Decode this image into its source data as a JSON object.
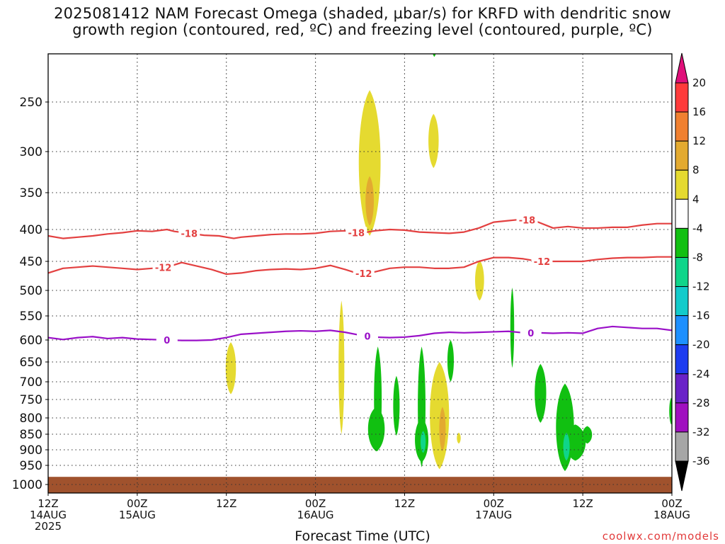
{
  "title": {
    "line1": "2025081412 NAM Forecast Omega (shaded, µbar/s) for KRFD with dendritic snow",
    "line2": "growth region (contoured, red, ºC) and freezing level (contoured, purple, ºC)"
  },
  "credit": "coolwx.com/models",
  "chart_data": {
    "type": "time-height cross section",
    "xlabel": "Forecast Time (UTC)",
    "ylabel": "",
    "x_range_hours": [
      0,
      84
    ],
    "y_range_hPa": [
      200,
      1000
    ],
    "y_ticks": [
      250,
      300,
      350,
      400,
      450,
      500,
      550,
      600,
      650,
      700,
      750,
      800,
      850,
      900,
      950,
      1000
    ],
    "x_ticks": [
      {
        "hour": 0,
        "lines": [
          "12Z",
          "14AUG",
          "2025"
        ]
      },
      {
        "hour": 12,
        "lines": [
          "00Z",
          "15AUG"
        ]
      },
      {
        "hour": 24,
        "lines": [
          "12Z"
        ]
      },
      {
        "hour": 36,
        "lines": [
          "00Z",
          "16AUG"
        ]
      },
      {
        "hour": 48,
        "lines": [
          "12Z"
        ]
      },
      {
        "hour": 60,
        "lines": [
          "00Z",
          "17AUG"
        ]
      },
      {
        "hour": 72,
        "lines": [
          "12Z"
        ]
      },
      {
        "hour": 84,
        "lines": [
          "00Z",
          "18AUG"
        ]
      }
    ],
    "grid": true,
    "colorbar": {
      "labels": [
        "20",
        "16",
        "12",
        "8",
        "4",
        "-4",
        "-8",
        "-12",
        "-16",
        "-20",
        "-24",
        "-28",
        "-32",
        "-36"
      ],
      "colors": [
        "#ff3b3b",
        "#f08030",
        "#e3aa30",
        "#e5da30",
        "#ffffff",
        "#11c011",
        "#0fd58a",
        "#12cbcb",
        "#1e90ff",
        "#1e3cf0",
        "#6a22c8",
        "#a010c0",
        "#a6a6a6"
      ],
      "top_triangle": "#e0107a",
      "bottom_triangle": "#000000"
    },
    "contours": [
      {
        "label": "-18",
        "color": "#e34040",
        "points": [
          [
            0,
            410
          ],
          [
            2,
            414
          ],
          [
            4,
            412
          ],
          [
            6,
            410
          ],
          [
            8,
            407
          ],
          [
            10,
            405
          ],
          [
            12,
            402
          ],
          [
            14,
            403
          ],
          [
            16,
            400
          ],
          [
            17,
            403
          ],
          [
            19,
            406
          ],
          [
            21,
            409
          ],
          [
            23,
            410
          ],
          [
            25,
            414
          ],
          [
            26,
            412
          ],
          [
            28,
            410
          ],
          [
            30,
            408
          ],
          [
            32,
            407
          ],
          [
            34,
            407
          ],
          [
            36,
            406
          ],
          [
            38,
            403
          ],
          [
            40,
            402
          ],
          [
            42,
            406
          ],
          [
            44,
            402
          ],
          [
            46,
            400
          ],
          [
            48,
            401
          ],
          [
            50,
            404
          ],
          [
            52,
            405
          ],
          [
            54,
            406
          ],
          [
            56,
            404
          ],
          [
            58,
            398
          ],
          [
            60,
            390
          ],
          [
            62,
            388
          ],
          [
            64,
            386
          ],
          [
            66,
            390
          ],
          [
            68,
            398
          ],
          [
            70,
            396
          ],
          [
            72,
            398
          ],
          [
            74,
            398
          ],
          [
            76,
            397
          ],
          [
            78,
            397
          ],
          [
            80,
            394
          ],
          [
            82,
            392
          ],
          [
            84,
            392
          ]
        ],
        "labels_at": [
          19,
          41.5,
          64.5
        ]
      },
      {
        "label": "-12",
        "color": "#e34040",
        "points": [
          [
            0,
            470
          ],
          [
            2,
            462
          ],
          [
            4,
            460
          ],
          [
            6,
            458
          ],
          [
            8,
            460
          ],
          [
            10,
            462
          ],
          [
            12,
            464
          ],
          [
            14,
            462
          ],
          [
            16,
            460
          ],
          [
            18,
            452
          ],
          [
            20,
            458
          ],
          [
            22,
            464
          ],
          [
            24,
            472
          ],
          [
            26,
            470
          ],
          [
            28,
            466
          ],
          [
            30,
            464
          ],
          [
            32,
            463
          ],
          [
            34,
            464
          ],
          [
            36,
            462
          ],
          [
            38,
            457
          ],
          [
            40,
            464
          ],
          [
            42,
            472
          ],
          [
            44,
            468
          ],
          [
            46,
            462
          ],
          [
            48,
            460
          ],
          [
            50,
            460
          ],
          [
            52,
            462
          ],
          [
            54,
            462
          ],
          [
            56,
            460
          ],
          [
            58,
            450
          ],
          [
            60,
            444
          ],
          [
            62,
            444
          ],
          [
            64,
            446
          ],
          [
            66,
            450
          ],
          [
            68,
            450
          ],
          [
            70,
            450
          ],
          [
            72,
            450
          ],
          [
            74,
            447
          ],
          [
            76,
            445
          ],
          [
            78,
            444
          ],
          [
            80,
            444
          ],
          [
            82,
            443
          ],
          [
            84,
            443
          ]
        ],
        "labels_at": [
          15.5,
          42.5,
          66.5
        ]
      },
      {
        "label": "0",
        "color": "#9a10c8",
        "points": [
          [
            0,
            595
          ],
          [
            2,
            599
          ],
          [
            4,
            595
          ],
          [
            6,
            593
          ],
          [
            8,
            597
          ],
          [
            10,
            595
          ],
          [
            12,
            598
          ],
          [
            14,
            599
          ],
          [
            16,
            600
          ],
          [
            18,
            601
          ],
          [
            20,
            601
          ],
          [
            22,
            600
          ],
          [
            24,
            595
          ],
          [
            26,
            588
          ],
          [
            28,
            586
          ],
          [
            30,
            584
          ],
          [
            32,
            582
          ],
          [
            34,
            581
          ],
          [
            36,
            582
          ],
          [
            38,
            580
          ],
          [
            40,
            584
          ],
          [
            42,
            590
          ],
          [
            44,
            594
          ],
          [
            46,
            595
          ],
          [
            48,
            594
          ],
          [
            50,
            591
          ],
          [
            52,
            586
          ],
          [
            54,
            584
          ],
          [
            56,
            585
          ],
          [
            58,
            584
          ],
          [
            60,
            583
          ],
          [
            62,
            582
          ],
          [
            64,
            585
          ],
          [
            66,
            585
          ],
          [
            68,
            586
          ],
          [
            70,
            585
          ],
          [
            72,
            586
          ],
          [
            74,
            576
          ],
          [
            76,
            572
          ],
          [
            78,
            574
          ],
          [
            80,
            576
          ],
          [
            82,
            576
          ],
          [
            84,
            580
          ]
        ],
        "labels_at": [
          16,
          43,
          65
        ]
      }
    ],
    "shaded_regions": [
      {
        "value": 4,
        "color": "#e5da30",
        "hour": 43.3,
        "top": 240,
        "bottom": 410,
        "width": 3.4
      },
      {
        "value": 8,
        "color": "#e3aa30",
        "hour": 43.3,
        "top": 330,
        "bottom": 395,
        "width": 1.3
      },
      {
        "value": 4,
        "color": "#e5da30",
        "hour": 51.9,
        "top": 262,
        "bottom": 320,
        "width": 1.6
      },
      {
        "value": -4,
        "color": "#11c011",
        "hour": 52.0,
        "top": 203,
        "bottom": 212,
        "width": 0.5
      },
      {
        "value": 4,
        "color": "#e5da30",
        "hour": 24.6,
        "top": 605,
        "bottom": 735,
        "width": 1.6
      },
      {
        "value": 4,
        "color": "#e5da30",
        "hour": 39.5,
        "top": 520,
        "bottom": 850,
        "width": 0.9
      },
      {
        "value": 4,
        "color": "#e5da30",
        "hour": 58.1,
        "top": 448,
        "bottom": 520,
        "width": 1.4
      },
      {
        "value": 4,
        "color": "#e5da30",
        "hour": 52.7,
        "top": 650,
        "bottom": 960,
        "width": 3.0
      },
      {
        "value": 8,
        "color": "#e3aa30",
        "hour": 53.1,
        "top": 770,
        "bottom": 905,
        "width": 1.0
      },
      {
        "value": 4,
        "color": "#e5da30",
        "hour": 55.3,
        "top": 845,
        "bottom": 880,
        "width": 0.6
      },
      {
        "value": -4,
        "color": "#11c011",
        "hour": 44.4,
        "top": 615,
        "bottom": 905,
        "width": 1.2
      },
      {
        "value": -4,
        "color": "#11c011",
        "hour": 44.2,
        "top": 770,
        "bottom": 905,
        "width": 2.6
      },
      {
        "value": -4,
        "color": "#11c011",
        "hour": 46.9,
        "top": 685,
        "bottom": 855,
        "width": 1.0
      },
      {
        "value": -4,
        "color": "#11c011",
        "hour": 50.3,
        "top": 615,
        "bottom": 955,
        "width": 1.2
      },
      {
        "value": -4,
        "color": "#11c011",
        "hour": 50.3,
        "top": 800,
        "bottom": 940,
        "width": 2.1
      },
      {
        "value": -8,
        "color": "#0fd58a",
        "hour": 50.5,
        "top": 840,
        "bottom": 910,
        "width": 0.8
      },
      {
        "value": -4,
        "color": "#11c011",
        "hour": 54.2,
        "top": 600,
        "bottom": 700,
        "width": 1.0
      },
      {
        "value": -4,
        "color": "#11c011",
        "hour": 62.5,
        "top": 495,
        "bottom": 665,
        "width": 0.6
      },
      {
        "value": -4,
        "color": "#11c011",
        "hour": 66.3,
        "top": 655,
        "bottom": 815,
        "width": 1.8
      },
      {
        "value": -4,
        "color": "#11c011",
        "hour": 69.6,
        "top": 705,
        "bottom": 965,
        "width": 2.8
      },
      {
        "value": -4,
        "color": "#11c011",
        "hour": 71.0,
        "top": 820,
        "bottom": 935,
        "width": 3.2
      },
      {
        "value": -8,
        "color": "#0fd58a",
        "hour": 69.8,
        "top": 845,
        "bottom": 935,
        "width": 1.0
      },
      {
        "value": -4,
        "color": "#11c011",
        "hour": 72.6,
        "top": 825,
        "bottom": 880,
        "width": 1.5
      },
      {
        "value": -4,
        "color": "#11c011",
        "hour": 83.9,
        "top": 745,
        "bottom": 820,
        "width": 0.6
      }
    ],
    "terrain": {
      "color": "#a0522d",
      "top_hPa": 980
    }
  }
}
